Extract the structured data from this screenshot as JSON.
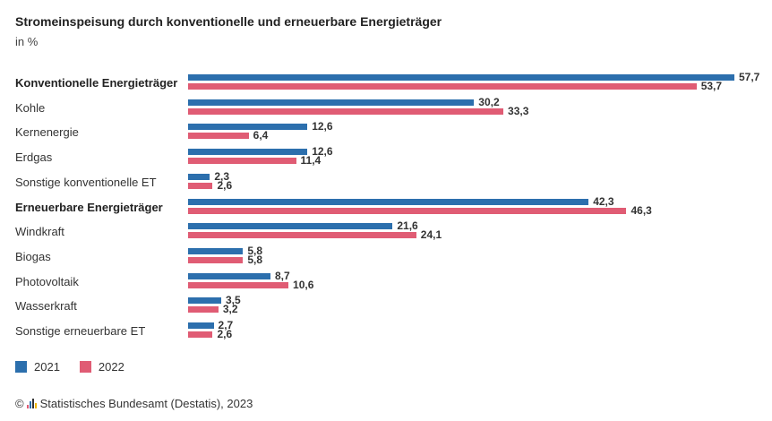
{
  "title": "Stromeinspeisung durch konventionelle und erneuerbare Energieträger",
  "subtitle": "in %",
  "colors": {
    "2021": "#2c6fad",
    "2022": "#e05c74"
  },
  "legend": [
    {
      "label": "2021",
      "color": "#2c6fad"
    },
    {
      "label": "2022",
      "color": "#e05c74"
    }
  ],
  "footer": {
    "copyright": "©",
    "source": "Statistisches Bundesamt (Destatis), 2023"
  },
  "chart_data": {
    "type": "bar",
    "orientation": "horizontal",
    "categories": [
      "Konventionelle Energieträger",
      "Kohle",
      "Kernenergie",
      "Erdgas",
      "Sonstige konventionelle ET",
      "Erneuerbare Energieträger",
      "Windkraft",
      "Biogas",
      "Photovoltaik",
      "Wasserkraft",
      "Sonstige erneuerbare ET"
    ],
    "bold_categories": [
      "Konventionelle Energieträger",
      "Erneuerbare Energieträger"
    ],
    "series": [
      {
        "name": "2021",
        "values": [
          57.7,
          30.2,
          12.6,
          12.6,
          2.3,
          42.3,
          21.6,
          5.8,
          8.7,
          3.5,
          2.7
        ]
      },
      {
        "name": "2022",
        "values": [
          53.7,
          33.3,
          6.4,
          11.4,
          2.6,
          46.3,
          24.1,
          5.8,
          10.6,
          3.2,
          2.6
        ]
      }
    ],
    "value_labels": [
      [
        "57,7",
        "30,2",
        "12,6",
        "12,6",
        "2,3",
        "42,3",
        "21,6",
        "5,8",
        "8,7",
        "3,5",
        "2,7"
      ],
      [
        "53,7",
        "33,3",
        "6,4",
        "11,4",
        "2,6",
        "46,3",
        "24,1",
        "5,8",
        "10,6",
        "3,2",
        "2,6"
      ]
    ],
    "xlim": [
      0,
      57.7
    ],
    "grid": false,
    "legend_position": "bottom-left"
  }
}
